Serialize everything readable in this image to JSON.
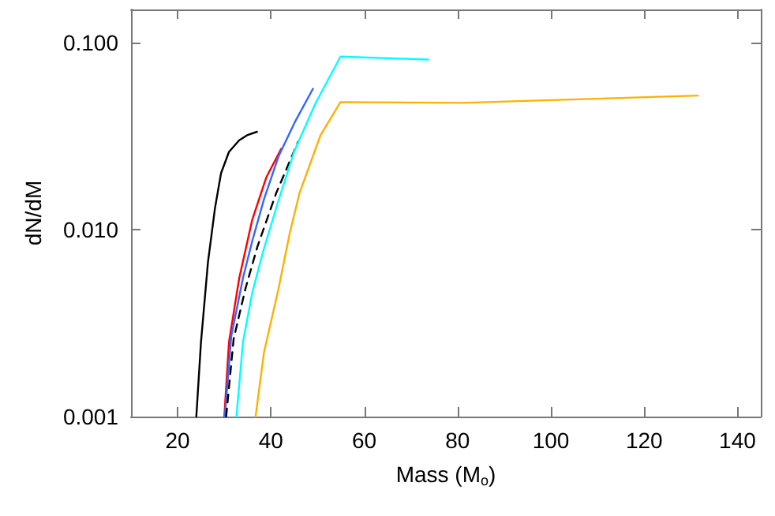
{
  "chart_data": {
    "type": "line",
    "xlabel": "Mass (M$_{o}$)",
    "ylabel": "dN/dM",
    "log": "y",
    "grid": false,
    "marker": "none",
    "xlim": [
      10,
      145
    ],
    "xticks": [
      20,
      40,
      60,
      80,
      100,
      120,
      140
    ],
    "ylim": [
      0.001,
      0.15
    ],
    "yticks": [
      {
        "value": 0.001,
        "label": "0.001"
      },
      {
        "value": 0.01,
        "label": "0.010"
      },
      {
        "value": 0.1,
        "label": "0.100"
      }
    ],
    "series": [
      {
        "color": "#000000",
        "x": [
          24,
          25,
          26.5,
          28,
          29.3,
          31,
          33.2,
          35,
          37
        ],
        "values": [
          0.001,
          0.0025,
          0.0067,
          0.013,
          0.02,
          0.026,
          0.03,
          0.032,
          0.0333
        ]
      },
      {
        "color": "#ff0000",
        "x": [
          30,
          31,
          33.2,
          36,
          39,
          42.2
        ],
        "values": [
          0.001,
          0.0025,
          0.0055,
          0.0113,
          0.019,
          0.027
        ]
      },
      {
        "color": "#3366ff",
        "x": [
          30.1,
          31.5,
          34,
          36,
          38.5,
          41.6,
          45,
          49
        ],
        "values": [
          0.001,
          0.0027,
          0.0055,
          0.0087,
          0.0145,
          0.0245,
          0.037,
          0.0565
        ]
      },
      {
        "color": "#000000",
        "line_style": "dashed",
        "x": [
          30.4,
          32,
          34.5,
          37.1,
          41.1,
          45.8
        ],
        "values": [
          0.001,
          0.0026,
          0.0048,
          0.0081,
          0.0156,
          0.0294
        ]
      },
      {
        "color": "#00ffff",
        "x": [
          32.6,
          34,
          36,
          38.3,
          41.5,
          45,
          49.5,
          54.9,
          73.7
        ],
        "values": [
          0.001,
          0.0025,
          0.0046,
          0.0076,
          0.014,
          0.0262,
          0.047,
          0.084,
          0.081
        ]
      },
      {
        "color": "#ffb000",
        "x": [
          36.7,
          38.5,
          41.6,
          44,
          46.1,
          50.6,
          54.9,
          81,
          131.5
        ],
        "values": [
          0.001,
          0.0022,
          0.0048,
          0.0095,
          0.0156,
          0.0318,
          0.048,
          0.0475,
          0.052
        ]
      }
    ]
  }
}
